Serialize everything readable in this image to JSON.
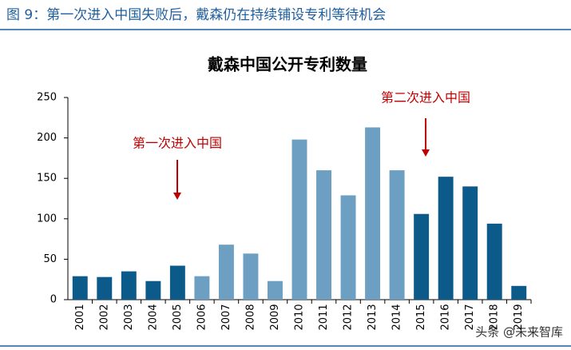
{
  "header": "图 9：第一次进入中国失败后，戴森仍在持续铺设专利等待机会",
  "watermark": "头条 @未来智库",
  "chart_data": {
    "type": "bar",
    "title": "戴森中国公开专利数量",
    "categories": [
      "2001",
      "2002",
      "2003",
      "2004",
      "2005",
      "2006",
      "2007",
      "2008",
      "2009",
      "2010",
      "2011",
      "2012",
      "2013",
      "2014",
      "2015",
      "2016",
      "2017",
      "2018",
      "2019"
    ],
    "values": [
      29,
      28,
      35,
      23,
      42,
      29,
      68,
      57,
      23,
      198,
      160,
      129,
      213,
      160,
      106,
      152,
      140,
      94,
      17
    ],
    "colors": [
      "#0b5a8a",
      "#0b5a8a",
      "#0b5a8a",
      "#0b5a8a",
      "#0b5a8a",
      "#6c9fc1",
      "#6c9fc1",
      "#6c9fc1",
      "#6c9fc1",
      "#6c9fc1",
      "#6c9fc1",
      "#6c9fc1",
      "#6c9fc1",
      "#6c9fc1",
      "#0b5a8a",
      "#0b5a8a",
      "#0b5a8a",
      "#0b5a8a",
      "#0b5a8a"
    ],
    "annotations": [
      "第一次进入中国",
      "第二次进入中国"
    ],
    "annotation_color": "#c00000",
    "ylim": [
      0,
      250
    ],
    "yticks": [
      0,
      50,
      100,
      150,
      200,
      250
    ],
    "grid": false
  }
}
